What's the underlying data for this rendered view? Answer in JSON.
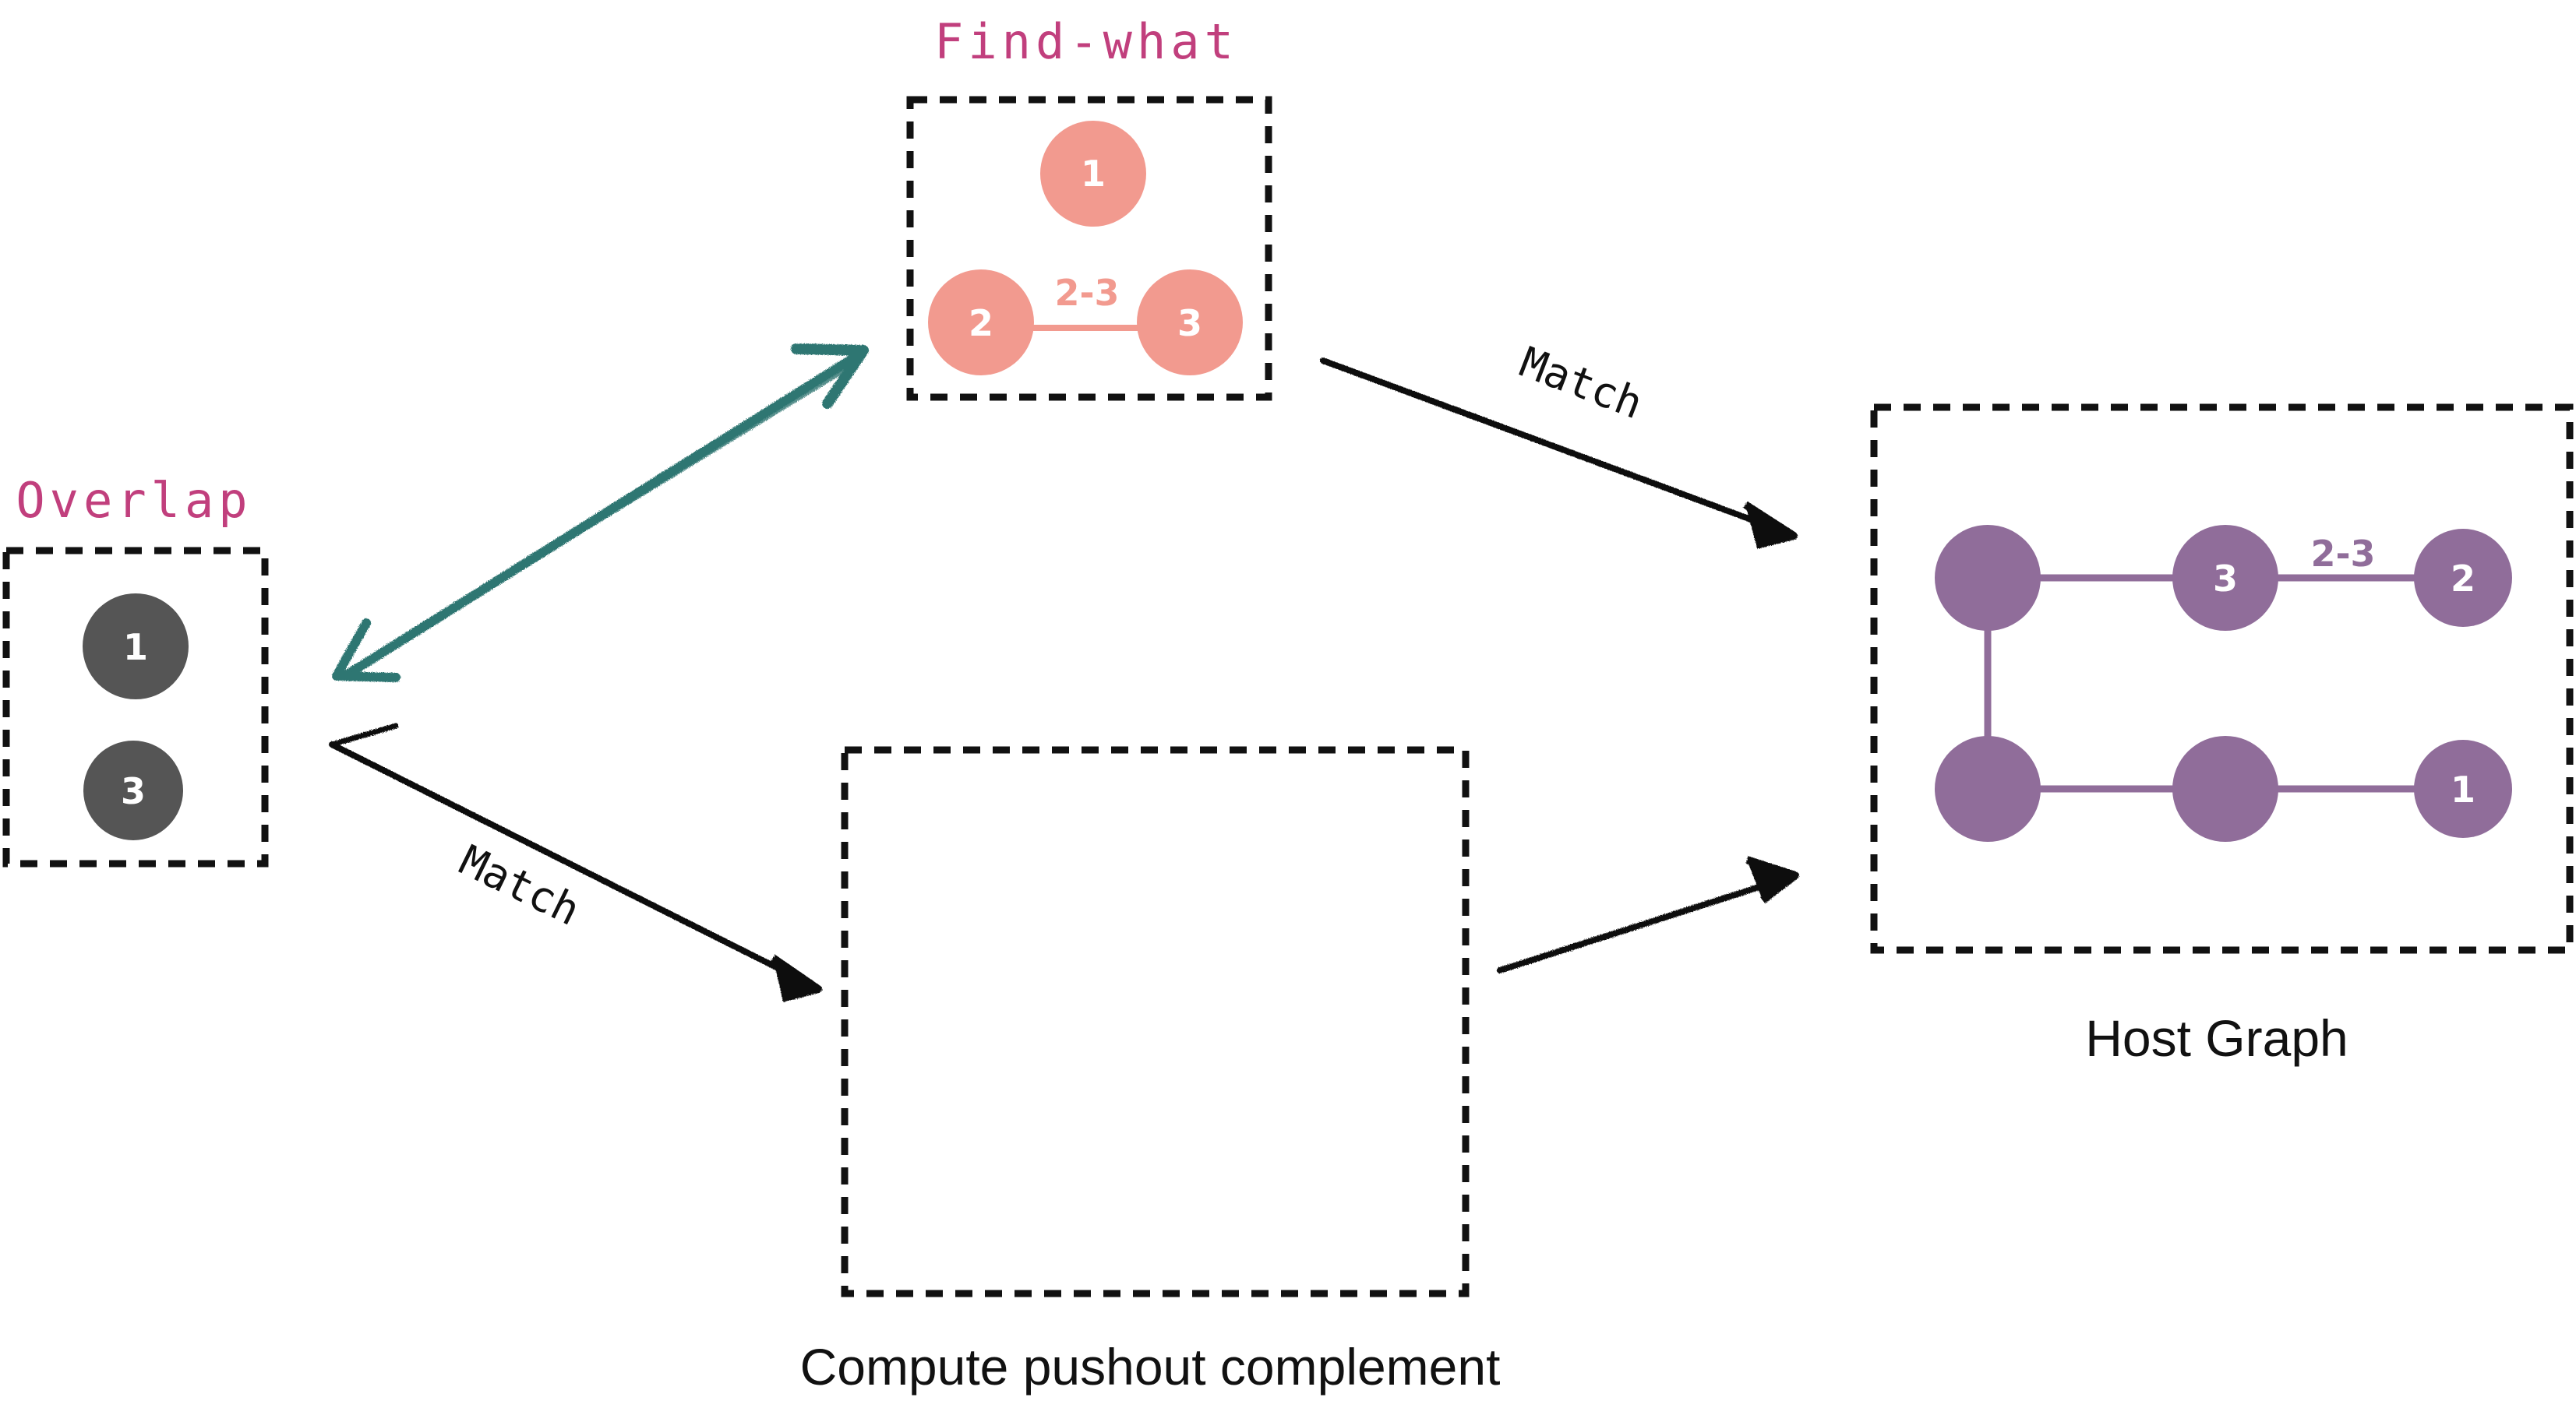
{
  "labels": {
    "find_what": "Find-what",
    "overlap": "Overlap",
    "host_graph": "Host Graph",
    "pushout": "Compute pushout complement",
    "match_top": "Match",
    "match_bottom": "Match"
  },
  "overlap": {
    "nodes": [
      "1",
      "3"
    ]
  },
  "find_what": {
    "nodes": [
      "1",
      "2",
      "3"
    ],
    "edge_label": "2-3"
  },
  "host_graph": {
    "nodes": [
      "3",
      "2",
      "1"
    ],
    "edge_label": "2-3"
  },
  "colors": {
    "label_pink": "#c13f7d",
    "overlap_node": "#555555",
    "find_node": "#f29a8f",
    "host_node": "#906d9a",
    "teal_arrow": "#2f7672",
    "black": "#111111"
  }
}
